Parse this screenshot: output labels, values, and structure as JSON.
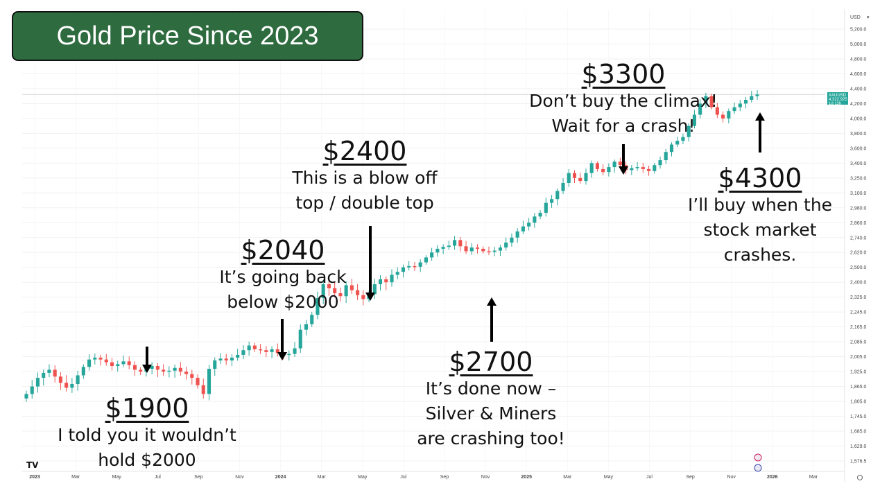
{
  "title": "Gold Price Since 2023",
  "symbol_tag": {
    "symbol": "XAUUSD",
    "price": "4,322.925",
    "time": "1d 12h"
  },
  "chart_data": {
    "type": "candlestick",
    "currency": "USD",
    "y_ticks": [
      1576.5,
      1629.0,
      1685.0,
      1745.0,
      1805.0,
      1865.0,
      1925.0,
      2005.0,
      2085.0,
      2165.0,
      2245.0,
      2325.0,
      2400.0,
      2500.0,
      2620.0,
      2740.0,
      2860.0,
      2980.0,
      3100.0,
      3250.0,
      3400.0,
      3600.0,
      3800.0,
      4000.0,
      4200.0,
      4400.0,
      4600.0,
      4800.0,
      5000.0,
      5200.0
    ],
    "x_labels": [
      "2023",
      "Mar",
      "May",
      "Jul",
      "Sep",
      "Nov",
      "2024",
      "Mar",
      "May",
      "Jul",
      "Sep",
      "Nov",
      "2025",
      "Mar",
      "May",
      "Jul",
      "Sep",
      "Nov",
      "2026",
      "Mar"
    ],
    "last_price": 4322.925,
    "closes": [
      1835,
      1865,
      1900,
      1920,
      1935,
      1905,
      1880,
      1860,
      1875,
      1910,
      1950,
      1990,
      2000,
      1990,
      1975,
      1955,
      1965,
      1980,
      1960,
      1935,
      1925,
      1940,
      1955,
      1935,
      1925,
      1930,
      1945,
      1925,
      1915,
      1900,
      1870,
      1835,
      1940,
      1985,
      1995,
      1985,
      2000,
      2015,
      2040,
      2065,
      2045,
      2040,
      2030,
      2045,
      2025,
      2015,
      2020,
      2050,
      2150,
      2180,
      2230,
      2320,
      2390,
      2370,
      2345,
      2330,
      2385,
      2360,
      2335,
      2315,
      2340,
      2390,
      2420,
      2400,
      2450,
      2470,
      2500,
      2510,
      2505,
      2540,
      2580,
      2620,
      2650,
      2665,
      2675,
      2720,
      2670,
      2630,
      2660,
      2650,
      2630,
      2625,
      2635,
      2660,
      2700,
      2740,
      2790,
      2830,
      2860,
      2910,
      2940,
      3020,
      3050,
      3120,
      3200,
      3300,
      3250,
      3220,
      3300,
      3400,
      3340,
      3310,
      3360,
      3420,
      3380,
      3330,
      3350,
      3360,
      3340,
      3320,
      3380,
      3440,
      3550,
      3650,
      3700,
      3750,
      3900,
      4050,
      4200,
      4300,
      4150,
      4050,
      4000,
      4100,
      4150,
      4200,
      4250,
      4300,
      4322
    ]
  },
  "annotations": [
    {
      "price": "$1900",
      "lines": [
        "I told you it wouldn’t",
        "hold $2000"
      ]
    },
    {
      "price": "$2040",
      "lines": [
        "It’s going back",
        "below $2000"
      ]
    },
    {
      "price": "$2400",
      "lines": [
        "This is a blow off",
        "top / double top"
      ]
    },
    {
      "price": "$2700",
      "lines": [
        "It’s done now –",
        "Silver & Miners",
        "are crashing too!"
      ]
    },
    {
      "price": "$3300",
      "lines": [
        "Don’t buy the climax!",
        "Wait for a crash!"
      ]
    },
    {
      "price": "$4300",
      "lines": [
        "I’ll buy when the",
        "stock market",
        "crashes."
      ]
    }
  ],
  "colors": {
    "up": "#26a69a",
    "down": "#ef5350",
    "title_bg": "#2e6b3f",
    "title_text": "#ffffff"
  },
  "logo_text": "TV"
}
